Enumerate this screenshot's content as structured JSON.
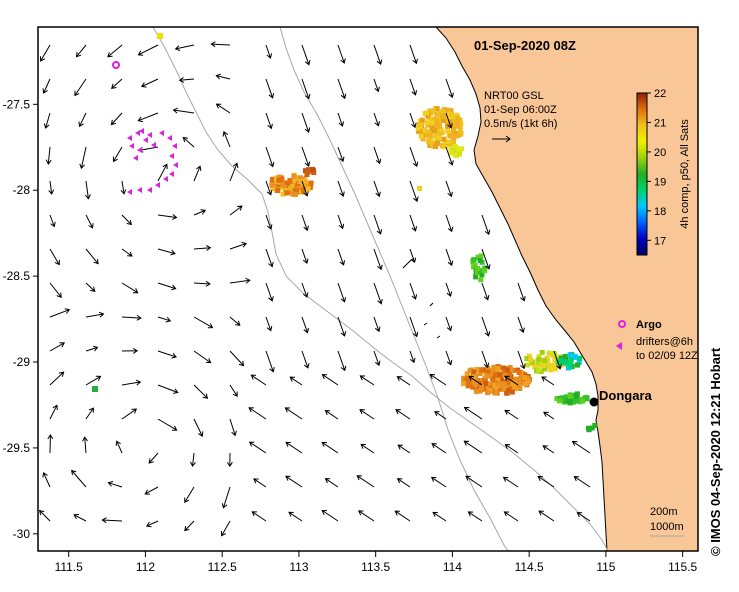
{
  "map": {
    "title": "01-Sep-2020 08Z",
    "credit": "©  IMOS 04-Sep-2020 12:21 Hobart",
    "place_label": "Dongara",
    "current_key": {
      "line1": "NRT00 GSL",
      "line2": "01-Sep 06:00Z",
      "line3": "0.5m/s (1kt 6h)"
    },
    "colorbar": {
      "label": "4h comp, p50, All Sats",
      "min": 16.5,
      "max": 22,
      "ticks": [
        "17",
        "18",
        "19",
        "20",
        "21",
        "22"
      ]
    },
    "legend": {
      "argo": "Argo",
      "drifters_line1": "drifters@6h",
      "drifters_line2": "to 02/09 12Z"
    },
    "contours": {
      "line1": "200m",
      "line2": "1000m"
    },
    "x_axis": {
      "min": 111.3,
      "max": 115.6,
      "ticks": [
        "111.5",
        "112",
        "112.5",
        "113",
        "113.5",
        "114",
        "114.5",
        "115",
        "115.5"
      ]
    },
    "y_axis": {
      "min": -30.1,
      "max": -27.05,
      "ticks": [
        "-27.5",
        "-28",
        "-28.5",
        "-29",
        "-29.5",
        "-30"
      ]
    },
    "colors": {
      "land": "#f9c697",
      "argo": "#e020e0",
      "drifter": "#e020e0",
      "contour": "#a8a8a8",
      "arrow": "#000000"
    }
  }
}
